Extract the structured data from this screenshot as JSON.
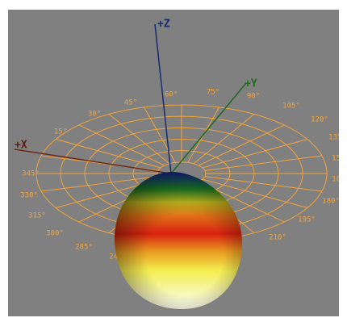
{
  "axes": {
    "x": "+X",
    "y": "+Y",
    "z": "+Z"
  },
  "angle_labels": [
    "15°",
    "30°",
    "45°",
    "60°",
    "75°",
    "90°",
    "105°",
    "120°",
    "135°",
    "150°",
    "165°",
    "180°",
    "195°",
    "210°",
    "225°",
    "240°",
    "285°",
    "300°",
    "315°",
    "330°",
    "345°"
  ]
}
